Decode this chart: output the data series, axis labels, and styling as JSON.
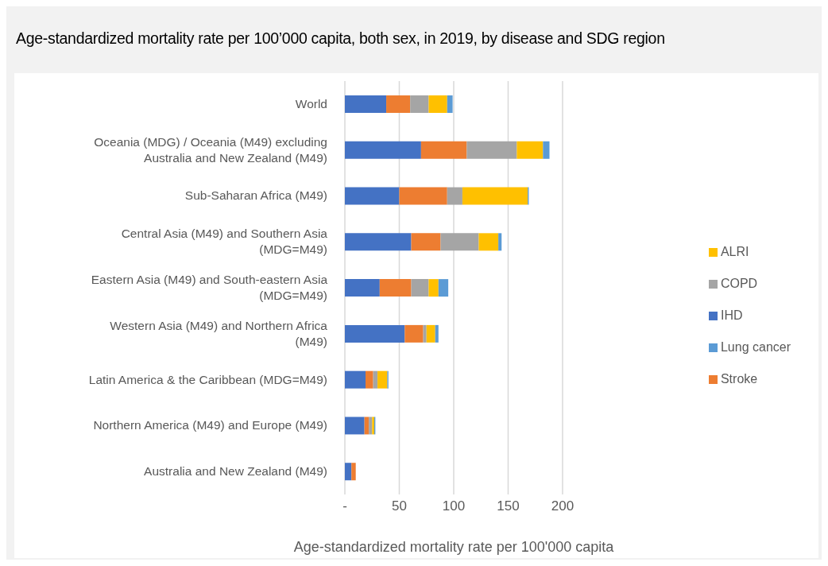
{
  "chart_data": {
    "type": "bar",
    "orientation": "horizontal",
    "stacked": true,
    "title": "Age-standardized mortality rate per 100’000 capita, both sex, in 2019, by disease and SDG region",
    "xlabel": "Age-standardized mortality rate per 100'000 capita",
    "categories": [
      "World",
      "Oceania (MDG) / Oceania (M49) excluding Australia and New Zealand (M49)",
      "Sub-Saharan Africa (M49)",
      "Central Asia (M49) and Southern Asia (MDG=M49)",
      "Eastern Asia (M49) and South-eastern Asia (MDG=M49)",
      "Western Asia (M49) and Northern Africa (M49)",
      "Latin America & the Caribbean (MDG=M49)",
      "Northern America (M49) and Europe (M49)",
      "Australia and New Zealand (M49)"
    ],
    "series": [
      {
        "name": "IHD",
        "color": "#4472c4",
        "values": [
          38,
          70,
          50,
          61,
          32,
          55,
          19,
          18,
          6
        ]
      },
      {
        "name": "Stroke",
        "color": "#ed7d31",
        "values": [
          22,
          42,
          44,
          27,
          29,
          17,
          7,
          4,
          4
        ]
      },
      {
        "name": "COPD",
        "color": "#a5a5a5",
        "values": [
          17,
          46,
          14,
          35,
          16,
          3,
          4,
          3,
          0
        ]
      },
      {
        "name": "ALRI",
        "color": "#ffc000",
        "values": [
          17,
          24,
          60,
          18,
          9,
          8,
          9,
          2,
          0
        ]
      },
      {
        "name": "Lung cancer",
        "color": "#5b9bd5",
        "values": [
          5,
          6,
          1,
          3,
          9,
          3,
          1,
          1,
          0
        ]
      }
    ],
    "xlim": [
      0,
      200
    ],
    "xticks": [
      {
        "value": 0,
        "label": "-"
      },
      50,
      100,
      150,
      200
    ],
    "grid": "x",
    "legend": "right"
  }
}
